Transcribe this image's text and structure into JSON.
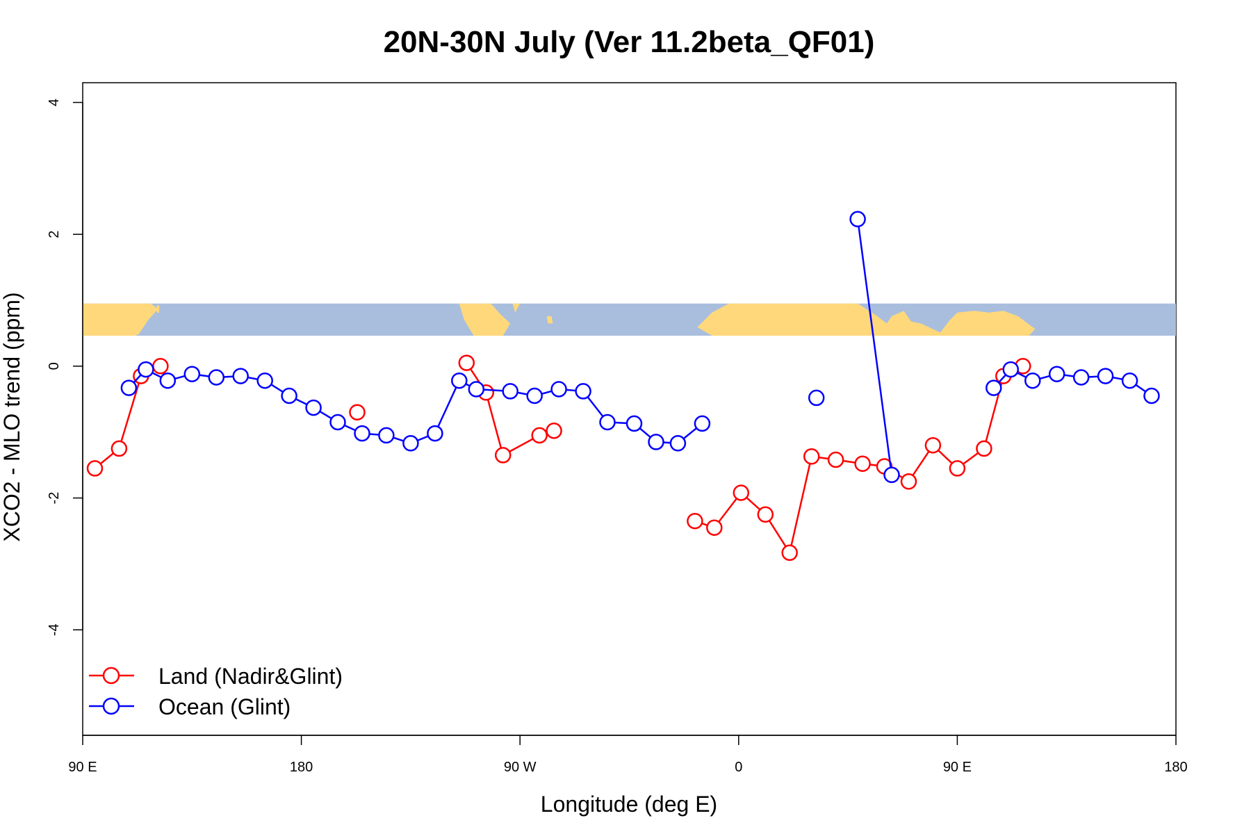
{
  "chart_data": {
    "type": "line",
    "title": "20N-30N July (Ver 11.2beta_QF01)",
    "xlabel": "Longitude (deg E)",
    "ylabel": "XCO2 - MLO trend (ppm)",
    "xlim": [
      90,
      540
    ],
    "ylim": [
      -5.6,
      4.3
    ],
    "x_ticks": [
      90,
      180,
      270,
      360,
      450,
      540
    ],
    "x_tick_labels": [
      "90 E",
      "180",
      "90 W",
      "0",
      "90 E",
      "180"
    ],
    "y_ticks": [
      -4,
      -2,
      0,
      2,
      4
    ],
    "y_tick_labels": [
      "-4",
      "-2",
      "0",
      "2",
      "4"
    ],
    "grid": false,
    "legend_position": "bottom-left",
    "land_ocean_band": {
      "y_range": [
        0.4,
        0.95
      ],
      "land_color": "#ffd87b",
      "ocean_color": "#a9bedd"
    },
    "series": [
      {
        "name": "Land (Nadir&Glint)",
        "color": "#ff0000",
        "segments": [
          [
            [
              95,
              -1.55
            ],
            [
              105,
              -1.25
            ],
            [
              114,
              -0.15
            ],
            [
              122,
              0.0
            ]
          ],
          [
            [
              203,
              -0.7
            ]
          ],
          [
            [
              248,
              0.05
            ],
            [
              256,
              -0.4
            ],
            [
              263,
              -1.35
            ],
            [
              278,
              -1.05
            ],
            [
              284,
              -0.98
            ]
          ],
          [
            [
              342,
              -2.35
            ],
            [
              350,
              -2.45
            ],
            [
              361,
              -1.92
            ],
            [
              371,
              -2.25
            ],
            [
              381,
              -2.83
            ],
            [
              390,
              -1.37
            ],
            [
              400,
              -1.42
            ],
            [
              411,
              -1.48
            ],
            [
              420,
              -1.52
            ],
            [
              430,
              -1.75
            ],
            [
              440,
              -1.2
            ],
            [
              450,
              -1.55
            ],
            [
              461,
              -1.25
            ],
            [
              469,
              -0.15
            ],
            [
              477,
              0.0
            ]
          ]
        ]
      },
      {
        "name": "Ocean (Glint)",
        "color": "#0000ff",
        "segments": [
          [
            [
              109,
              -0.33
            ],
            [
              116,
              -0.05
            ],
            [
              125,
              -0.22
            ],
            [
              135,
              -0.12
            ],
            [
              145,
              -0.17
            ],
            [
              155,
              -0.15
            ],
            [
              165,
              -0.22
            ],
            [
              175,
              -0.45
            ],
            [
              185,
              -0.63
            ],
            [
              195,
              -0.85
            ],
            [
              205,
              -1.02
            ],
            [
              215,
              -1.05
            ],
            [
              225,
              -1.17
            ],
            [
              235,
              -1.02
            ],
            [
              245,
              -0.22
            ],
            [
              252,
              -0.35
            ],
            [
              266,
              -0.38
            ],
            [
              276,
              -0.45
            ],
            [
              286,
              -0.35
            ],
            [
              296,
              -0.38
            ],
            [
              306,
              -0.85
            ],
            [
              317,
              -0.87
            ],
            [
              326,
              -1.15
            ],
            [
              335,
              -1.17
            ],
            [
              345,
              -0.87
            ]
          ],
          [
            [
              392,
              -0.48
            ]
          ],
          [
            [
              409,
              2.23
            ],
            [
              423,
              -1.65
            ]
          ],
          [
            [
              465,
              -0.33
            ],
            [
              472,
              -0.05
            ],
            [
              481,
              -0.22
            ],
            [
              491,
              -0.12
            ],
            [
              501,
              -0.17
            ],
            [
              511,
              -0.15
            ],
            [
              521,
              -0.22
            ],
            [
              530,
              -0.45
            ]
          ]
        ]
      }
    ]
  }
}
